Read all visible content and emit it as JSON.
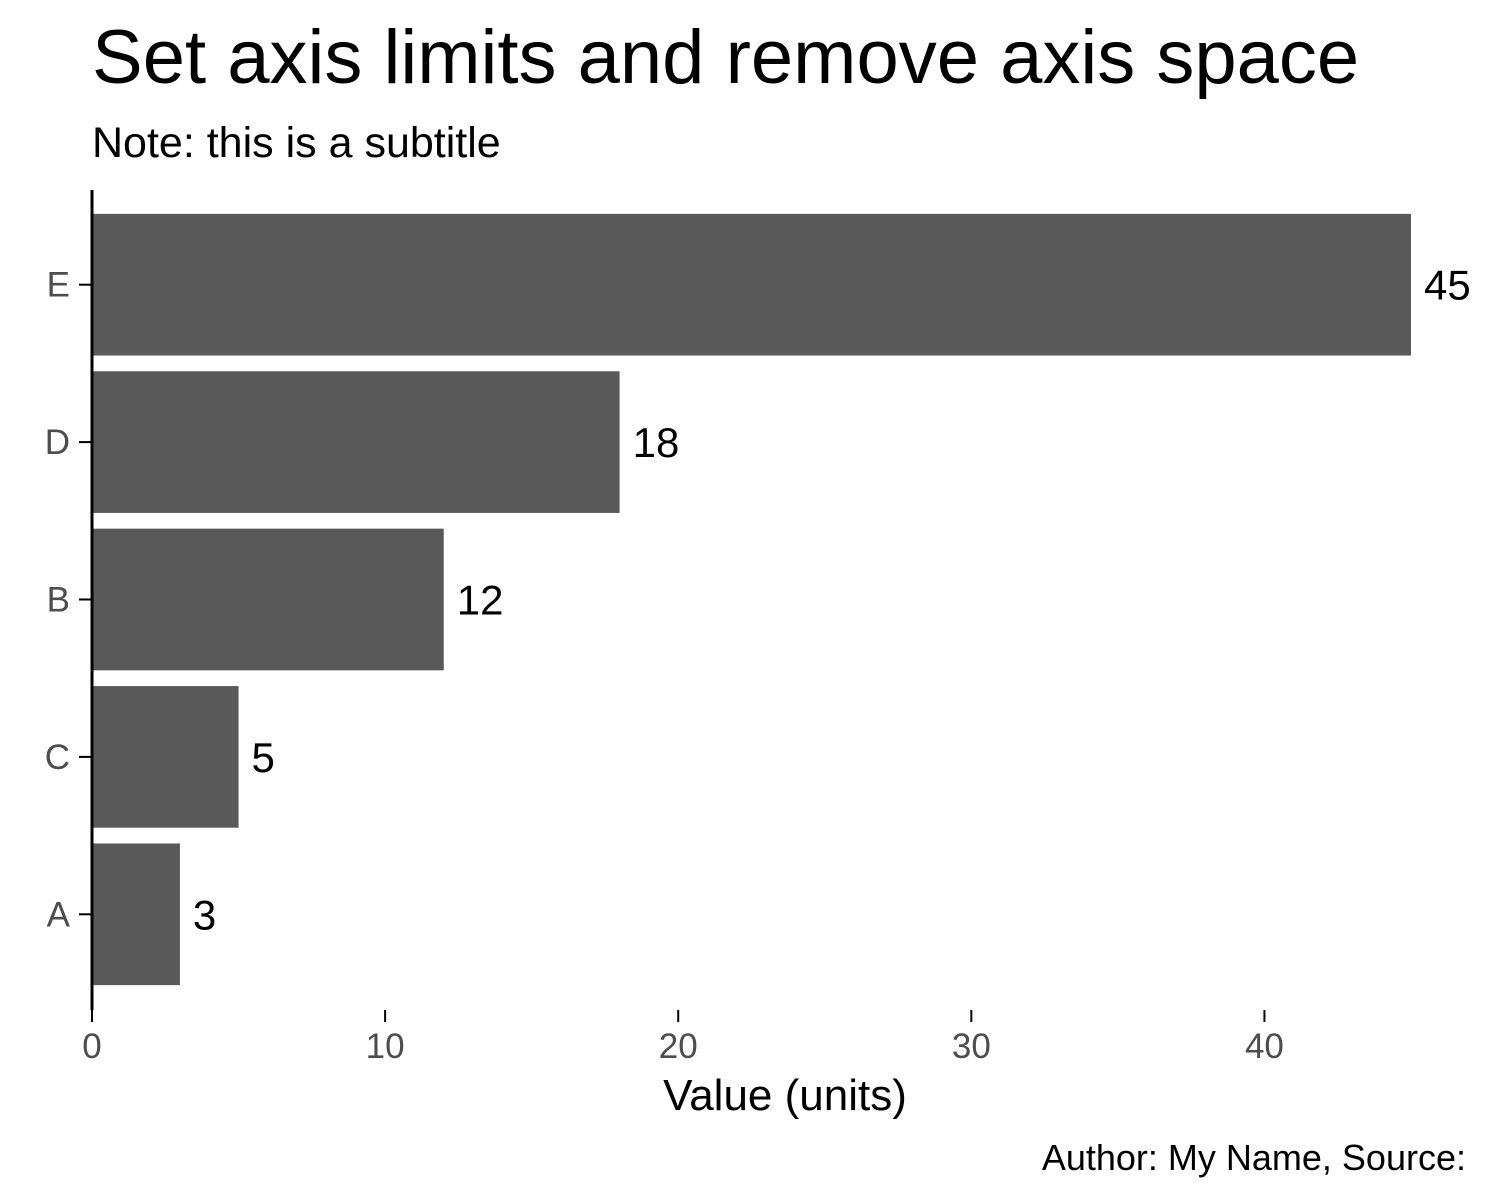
{
  "chart_data": {
    "type": "bar",
    "orientation": "horizontal",
    "title": "Set axis limits and remove axis space",
    "subtitle": "Note: this is a subtitle",
    "caption": "Author: My Name, Source:",
    "xlabel": "Value (units)",
    "ylabel": "",
    "categories": [
      "E",
      "D",
      "B",
      "C",
      "A"
    ],
    "values": [
      45,
      18,
      12,
      5,
      3
    ],
    "data_labels": [
      "45",
      "18",
      "12",
      "5",
      "3"
    ],
    "xlim": [
      0,
      45
    ],
    "x_ticks": [
      0,
      10,
      20,
      30,
      40
    ],
    "x_tick_labels": [
      "0",
      "10",
      "20",
      "30",
      "40"
    ],
    "grid": false,
    "legend": "none",
    "bar_color": "#595959",
    "axis_color": "#000000",
    "tick_label_color": "#4d4d4d"
  }
}
